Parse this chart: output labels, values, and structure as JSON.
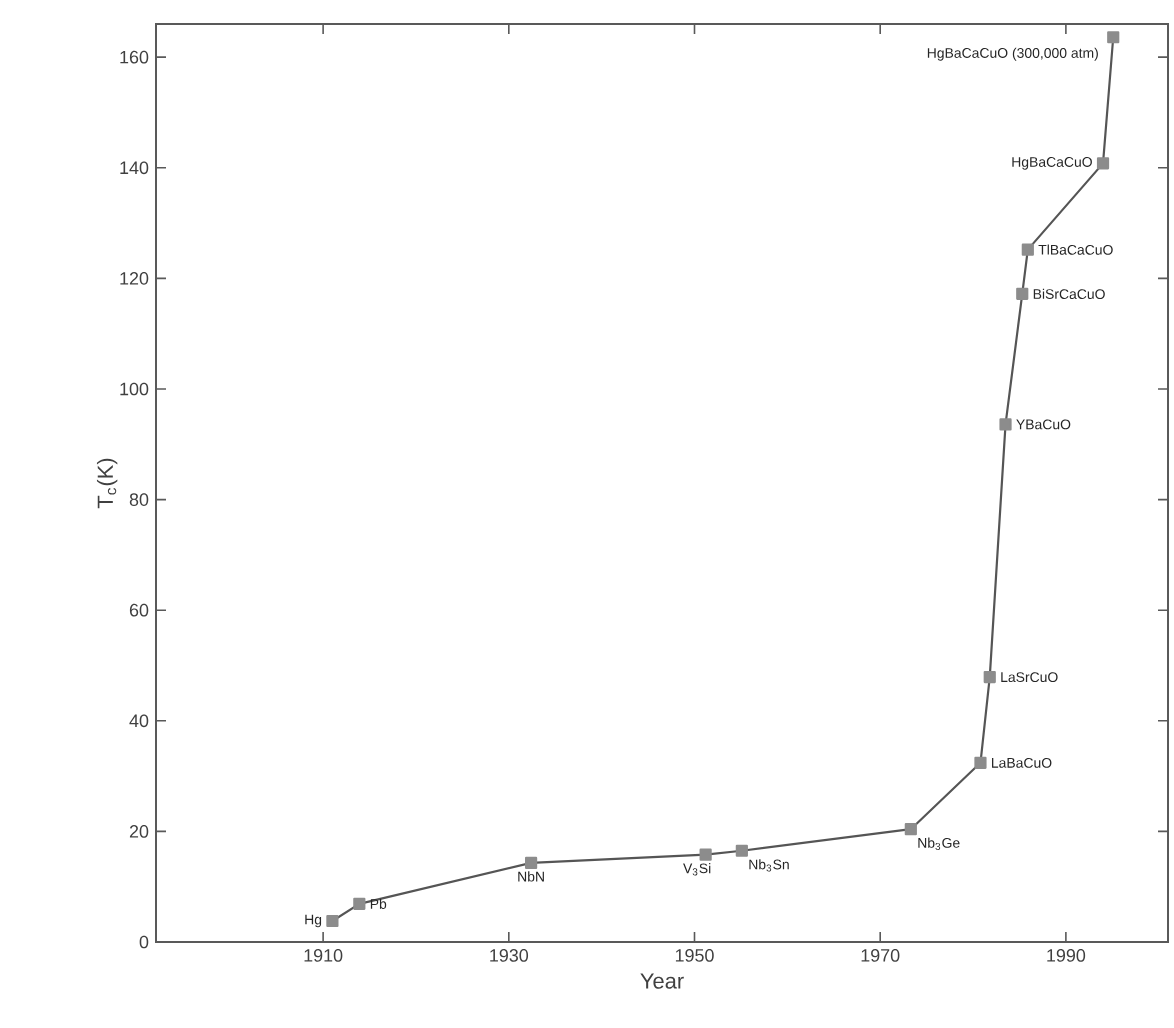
{
  "chart_data": {
    "type": "line",
    "xlabel": "Year",
    "ylabel": "T$_{c}$(K)",
    "x": [
      1911,
      1913.9,
      1932.4,
      1951.2,
      1955.1,
      1973.3,
      1980.8,
      1981.8,
      1983.5,
      1985.3,
      1985.9,
      1994,
      1995.1
    ],
    "series": [
      {
        "color": "#555555",
        "values": [
          3.8,
          6.9,
          14.3,
          15.8,
          16.5,
          20.4,
          32.4,
          47.9,
          93.6,
          117.2,
          125.2,
          140.8,
          163.6
        ]
      }
    ],
    "marker": "square",
    "line_style": "solid",
    "xlim": [
      1892,
      2001
    ],
    "ylim": [
      0,
      166
    ],
    "xticks": [
      1910,
      1930,
      1950,
      1970,
      1990
    ],
    "yticks": [
      0,
      20,
      40,
      60,
      80,
      100,
      120,
      140,
      160
    ],
    "annotations": [
      {
        "text": "Hg",
        "x": 1911,
        "y": 3.8
      },
      {
        "text": "Pb",
        "x": 1913.9,
        "y": 6.9
      },
      {
        "text": "NbN",
        "x": 1932.4,
        "y": 14.3
      },
      {
        "text": "V$_{3}$Si",
        "x": 1951.2,
        "y": 15.8
      },
      {
        "text": "Nb$_{3}$Sn",
        "x": 1955.1,
        "y": 16.5
      },
      {
        "text": "Nb$_{3}$Ge",
        "x": 1973.3,
        "y": 20.4
      },
      {
        "text": "LaBaCuO",
        "x": 1980.8,
        "y": 32.4
      },
      {
        "text": "LaSrCuO",
        "x": 1981.8,
        "y": 47.9
      },
      {
        "text": "YBaCuO",
        "x": 1983.5,
        "y": 93.6
      },
      {
        "text": "BiSrCaCuO",
        "x": 1985.3,
        "y": 117.2
      },
      {
        "text": "TlBaCaCuO",
        "x": 1985.9,
        "y": 125.2
      },
      {
        "text": "HgBaCaCuO",
        "x": 1994,
        "y": 140.8
      },
      {
        "text": "HgBaCaCuO (300,000 atm)",
        "x": 1995.1,
        "y": 163.6
      }
    ]
  }
}
